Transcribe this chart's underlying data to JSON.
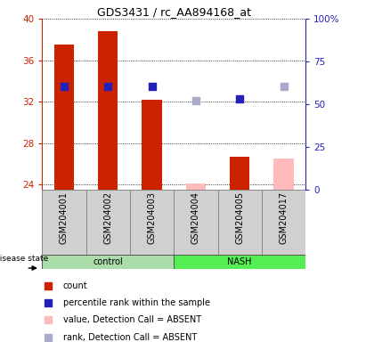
{
  "title": "GDS3431 / rc_AA894168_at",
  "samples": [
    "GSM204001",
    "GSM204002",
    "GSM204003",
    "GSM204004",
    "GSM204005",
    "GSM204017"
  ],
  "bar_values": [
    37.5,
    38.8,
    32.2,
    24.1,
    26.7,
    26.5
  ],
  "bar_absent": [
    false,
    false,
    false,
    true,
    false,
    true
  ],
  "rank_values": [
    33.5,
    33.5,
    33.5,
    32.1,
    32.3,
    33.5
  ],
  "rank_absent": [
    false,
    false,
    false,
    true,
    false,
    true
  ],
  "ylim_left": [
    23.5,
    40
  ],
  "ylim_right": [
    0,
    100
  ],
  "yticks_left": [
    24,
    28,
    32,
    36,
    40
  ],
  "yticks_right": [
    0,
    25,
    50,
    75,
    100
  ],
  "ytick_labels_right": [
    "0",
    "25",
    "50",
    "75",
    "100%"
  ],
  "bar_color_present": "#cc2200",
  "bar_color_absent": "#ffbbbb",
  "rank_color_present": "#2222bb",
  "rank_color_absent": "#aaaacc",
  "group_color_control": "#aaddaa",
  "group_color_nash": "#55ee55",
  "sample_box_color": "#d0d0d0",
  "bar_width": 0.45,
  "rank_marker_size": 40,
  "title_fontsize": 9,
  "tick_fontsize": 7.5,
  "label_fontsize": 7,
  "legend_fontsize": 7
}
